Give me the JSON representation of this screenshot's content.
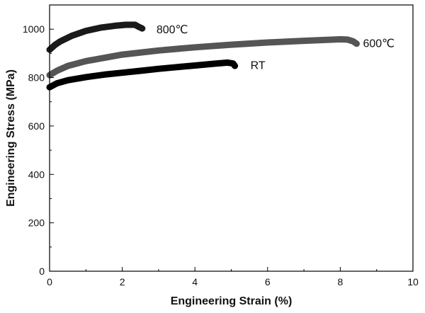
{
  "chart_data": {
    "type": "line",
    "title": "",
    "xlabel": "Engineering Strain (%)",
    "ylabel": "Engineering Stress (MPa)",
    "xlim": [
      0,
      10
    ],
    "ylim": [
      0,
      1100
    ],
    "xticks": [
      0,
      2,
      4,
      6,
      8,
      10
    ],
    "yticks": [
      0,
      200,
      400,
      600,
      800,
      1000
    ],
    "grid": false,
    "legend": "none",
    "series": [
      {
        "name": "RT",
        "color": "#000000",
        "x": [
          0,
          0.2,
          0.5,
          1.0,
          1.5,
          2.0,
          2.5,
          3.0,
          3.5,
          4.0,
          4.5,
          4.9,
          5.05,
          5.1
        ],
        "y": [
          760,
          776,
          789,
          802,
          812,
          820,
          828,
          836,
          843,
          850,
          857,
          862,
          858,
          848
        ]
      },
      {
        "name": "800℃",
        "color": "#1a1a1a",
        "x": [
          0,
          0.15,
          0.3,
          0.6,
          1.0,
          1.4,
          1.8,
          2.1,
          2.35,
          2.45,
          2.55
        ],
        "y": [
          915,
          935,
          950,
          972,
          993,
          1006,
          1014,
          1018,
          1018,
          1010,
          1003
        ]
      },
      {
        "name": "600℃",
        "color": "#555555",
        "x": [
          0,
          0.2,
          0.5,
          1.0,
          2.0,
          3.0,
          4.0,
          5.0,
          6.0,
          7.0,
          8.0,
          8.2,
          8.35,
          8.45
        ],
        "y": [
          810,
          828,
          848,
          868,
          895,
          912,
          925,
          936,
          945,
          952,
          958,
          957,
          950,
          940
        ]
      }
    ]
  }
}
